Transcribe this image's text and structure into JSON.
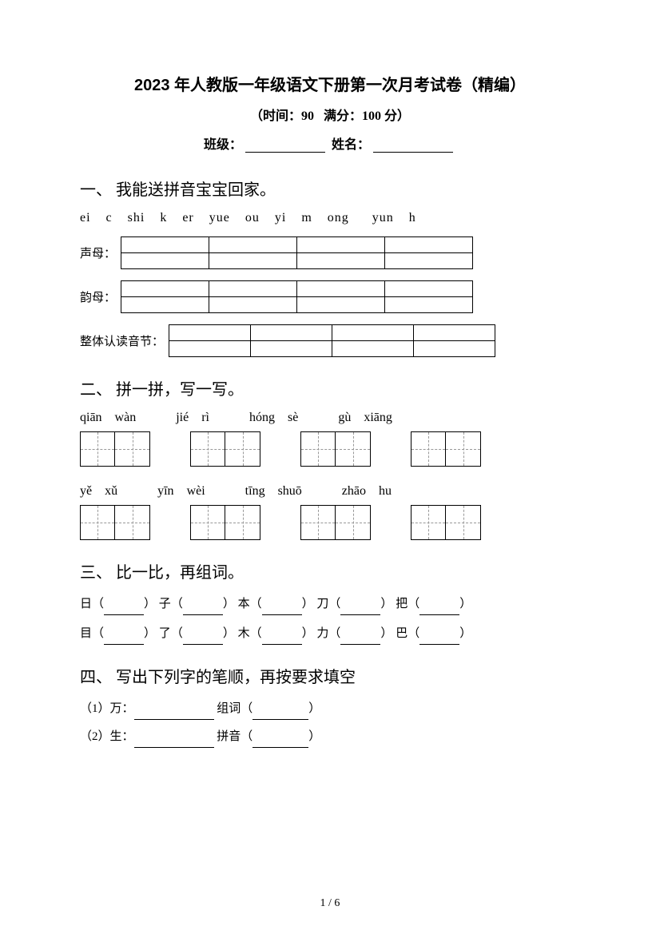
{
  "header": {
    "title": "2023 年人教版一年级语文下册第一次月考试卷（精编）",
    "time_label": "（时间：90",
    "score_label": "满分：100 分）",
    "class_label": "班级：",
    "name_label": "姓名："
  },
  "section1": {
    "title": "一、 我能送拼音宝宝回家。",
    "pinyin_items": [
      "ei",
      "c",
      "shi",
      "k",
      "er",
      "yue",
      "ou",
      "yi",
      "m",
      "ong",
      "yun",
      "h"
    ],
    "row1_label": "声母：",
    "row2_label": "韵母：",
    "row3_label": "整体认读音节：",
    "table_cols": 4,
    "table_rows": 2
  },
  "section2": {
    "title": "二、 拼一拼，写一写。",
    "row1": [
      {
        "p1": "qiān",
        "p2": "wàn"
      },
      {
        "p1": "jié",
        "p2": "rì"
      },
      {
        "p1": "hóng",
        "p2": "sè"
      },
      {
        "p1": "gù",
        "p2": "xiāng"
      }
    ],
    "row2": [
      {
        "p1": "yě",
        "p2": "xǔ"
      },
      {
        "p1": "yīn",
        "p2": "wèi"
      },
      {
        "p1": "tīng",
        "p2": "shuō"
      },
      {
        "p1": "zhāo",
        "p2": "hu"
      }
    ]
  },
  "section3": {
    "title": "三、 比一比，再组词。",
    "line1": [
      {
        "char": "日"
      },
      {
        "char": "子"
      },
      {
        "char": "本"
      },
      {
        "char": "刀"
      },
      {
        "char": "把"
      }
    ],
    "line2": [
      {
        "char": "目"
      },
      {
        "char": "了"
      },
      {
        "char": "木"
      },
      {
        "char": "力"
      },
      {
        "char": "巴"
      }
    ]
  },
  "section4": {
    "title": "四、 写出下列字的笔顺，再按要求填空",
    "item1_prefix": "（1）万：",
    "item1_label": "组词（",
    "item1_suffix": "）",
    "item2_prefix": "（2）生：",
    "item2_label": "拼音（",
    "item2_suffix": "）"
  },
  "footer": {
    "page": "1 / 6"
  },
  "styles": {
    "bg": "#ffffff",
    "text": "#000000",
    "title_fontsize": 20,
    "body_fontsize": 15
  }
}
